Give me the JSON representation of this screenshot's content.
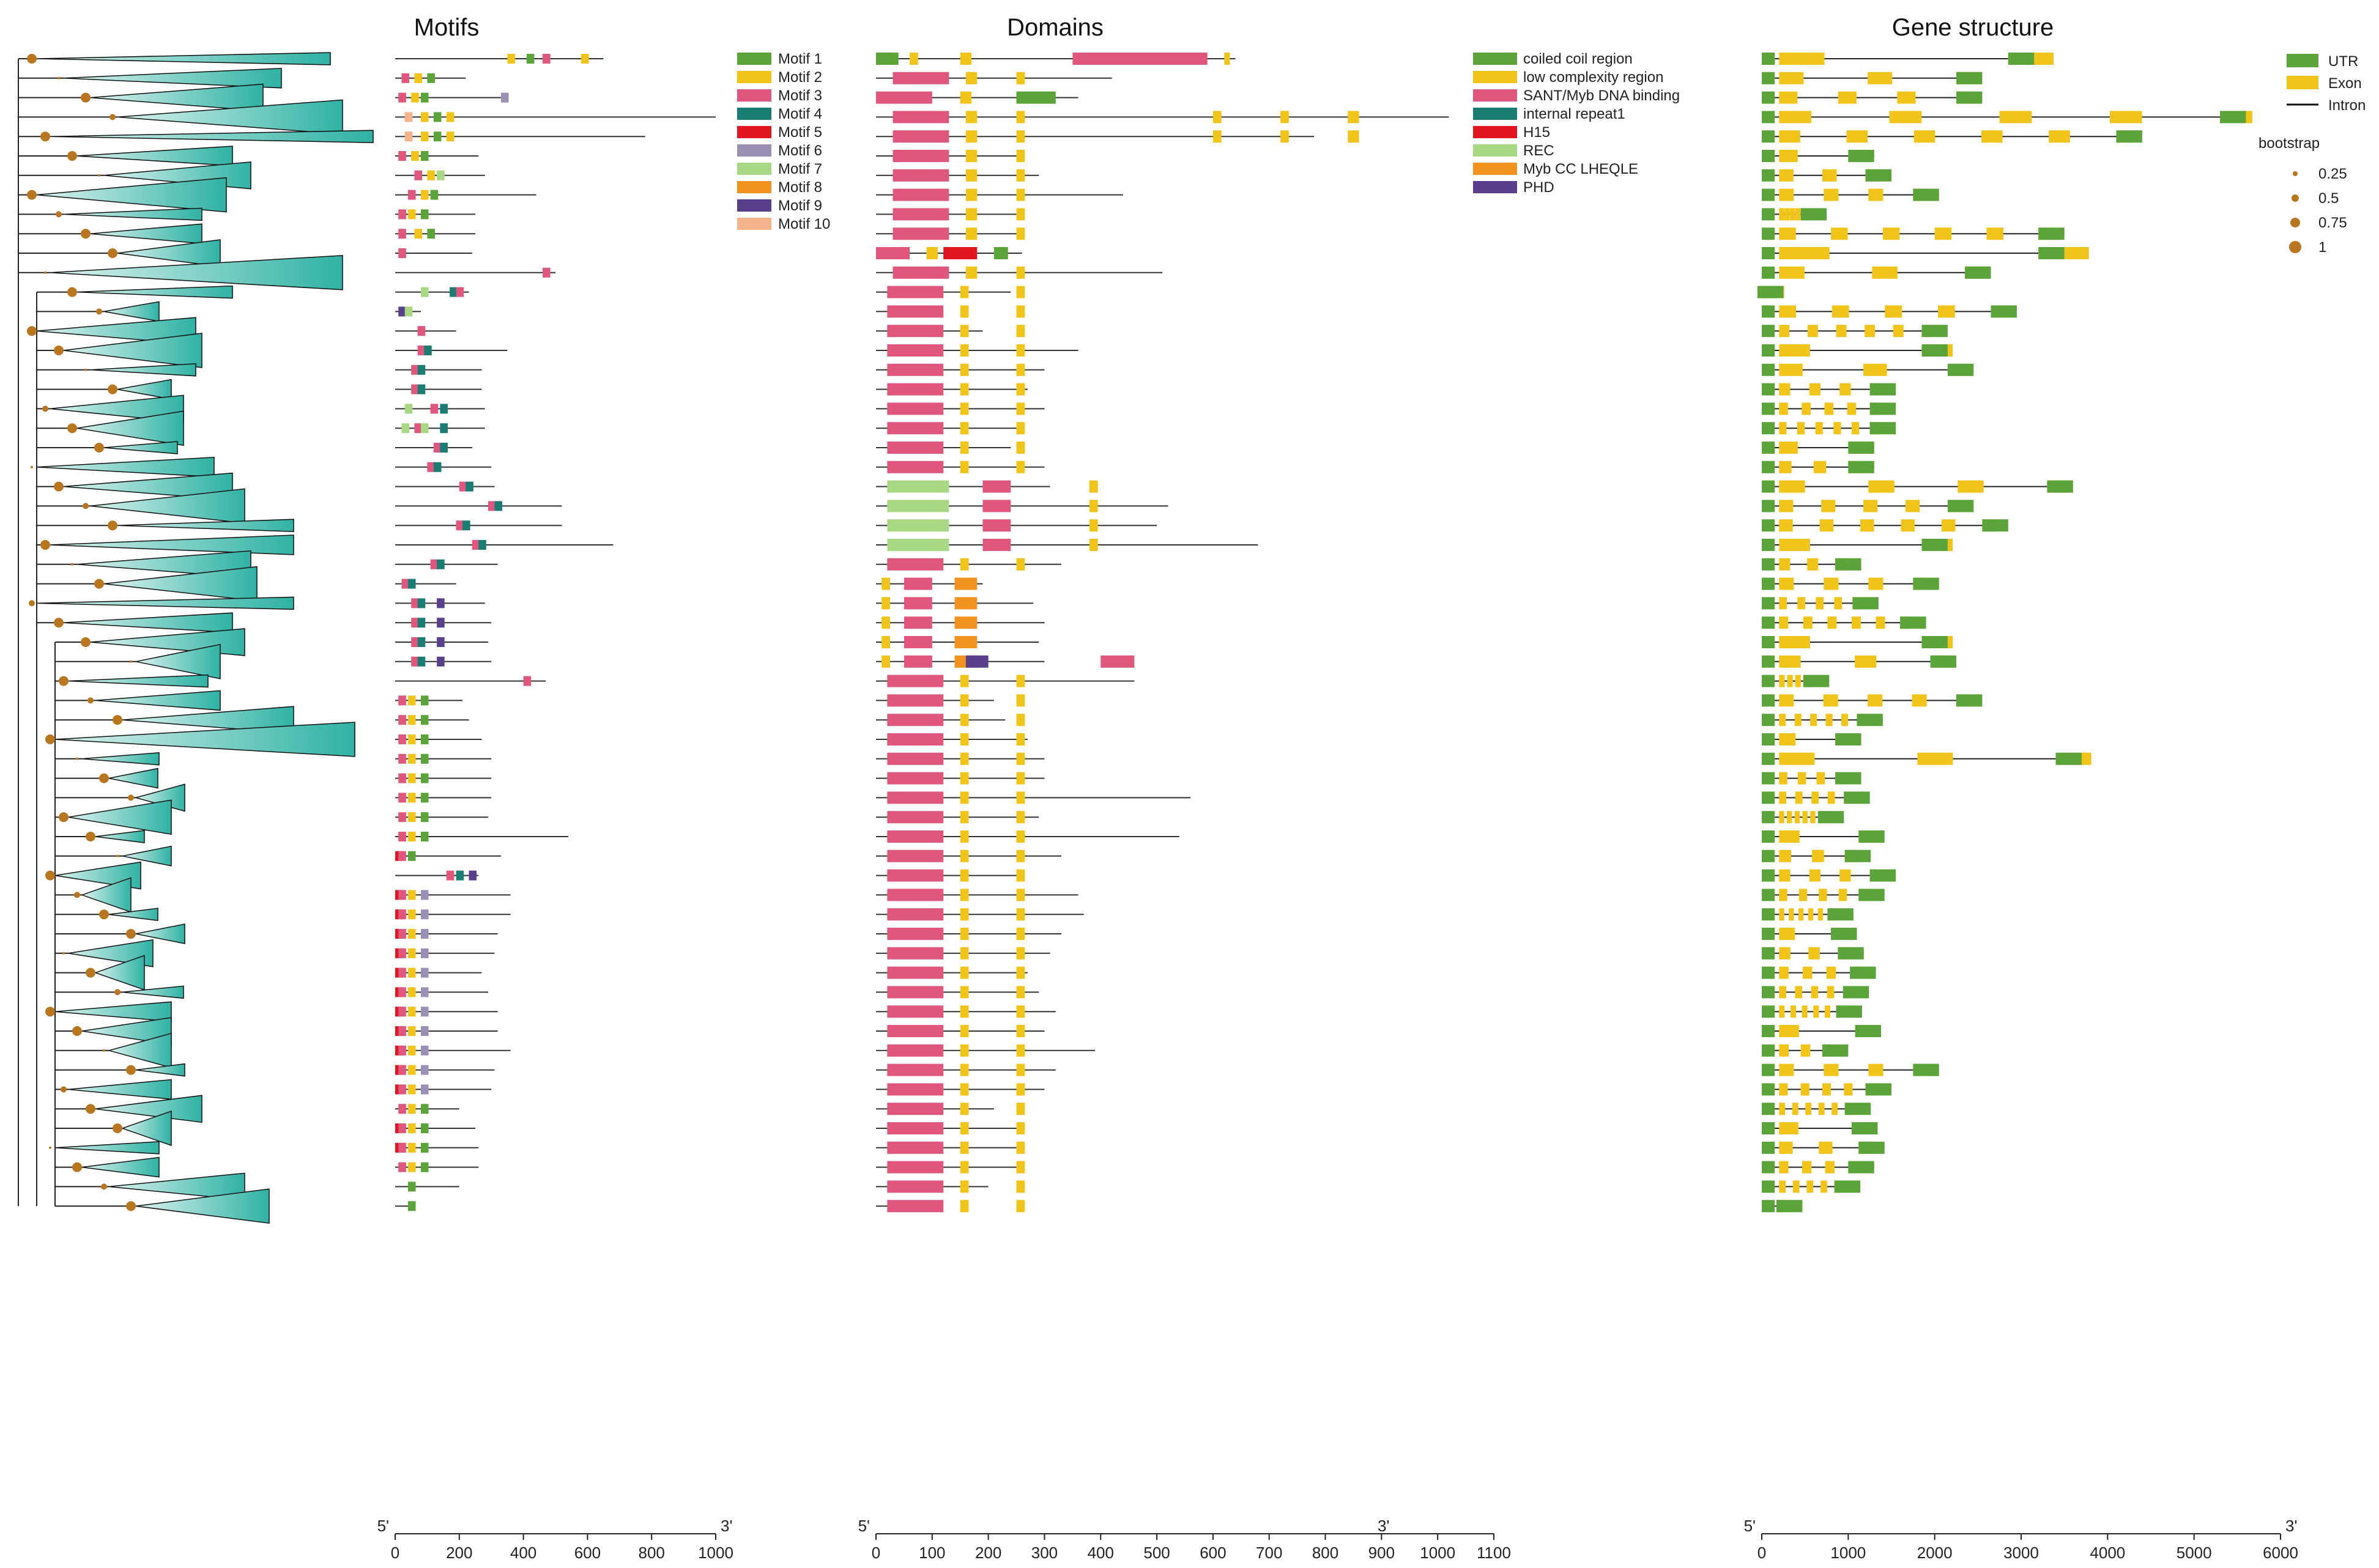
{
  "panels": {
    "motifs": {
      "title": "Motifs",
      "axis_ticks": [
        "0",
        "200",
        "400",
        "600",
        "800",
        "1000"
      ],
      "end_left": "5'",
      "end_right": "3'"
    },
    "domains": {
      "title": "Domains",
      "axis_ticks": [
        "0",
        "100",
        "200",
        "300",
        "400",
        "500",
        "600",
        "700",
        "800",
        "900",
        "1000",
        "1100"
      ],
      "end_left": "5'",
      "end_right": "3'"
    },
    "gene_structure": {
      "title": "Gene structure",
      "axis_ticks": [
        "0",
        "1000",
        "2000",
        "3000",
        "4000",
        "5000",
        "6000"
      ],
      "end_left": "5'",
      "end_right": "3'"
    }
  },
  "motif_legend": [
    {
      "label": "Motif 1",
      "color": "#5aa43a"
    },
    {
      "label": "Motif 2",
      "color": "#f0c419"
    },
    {
      "label": "Motif 3",
      "color": "#e0567c"
    },
    {
      "label": "Motif 4",
      "color": "#1a7d74"
    },
    {
      "label": "Motif 5",
      "color": "#e0171e"
    },
    {
      "label": "Motif 6",
      "color": "#9c8fb4"
    },
    {
      "label": "Motif 7",
      "color": "#a8d884"
    },
    {
      "label": "Motif 8",
      "color": "#f2921f"
    },
    {
      "label": "Motif 9",
      "color": "#5a3f8c"
    },
    {
      "label": "Motif 10",
      "color": "#f4b28b"
    }
  ],
  "domain_legend": [
    {
      "label": "coiled coil region",
      "color": "#5aa43a"
    },
    {
      "label": "low complexity region",
      "color": "#f0c419"
    },
    {
      "label": "SANT/Myb DNA binding",
      "color": "#e0567c"
    },
    {
      "label": "internal repeat1",
      "color": "#1a7d74"
    },
    {
      "label": "H15",
      "color": "#e0171e"
    },
    {
      "label": "REC",
      "color": "#a8d884"
    },
    {
      "label": "Myb CC LHEQLE",
      "color": "#f2921f"
    },
    {
      "label": "PHD",
      "color": "#5a3f8c"
    }
  ],
  "gene_legend": [
    {
      "label": "UTR",
      "color": "#5aa43a",
      "kind": "box"
    },
    {
      "label": "Exon",
      "color": "#f0c419",
      "kind": "box"
    },
    {
      "label": "Intron",
      "color": "#111111",
      "kind": "line"
    }
  ],
  "bootstrap_legend": {
    "title": "bootstrap",
    "items": [
      {
        "label": "0.25",
        "value": 0.25
      },
      {
        "label": "0.5",
        "value": 0.5
      },
      {
        "label": "0.75",
        "value": 0.75
      },
      {
        "label": "1",
        "value": 1
      }
    ],
    "color": "#b8761f"
  },
  "tree": {
    "clade_color": "#2fb2a4"
  }
}
